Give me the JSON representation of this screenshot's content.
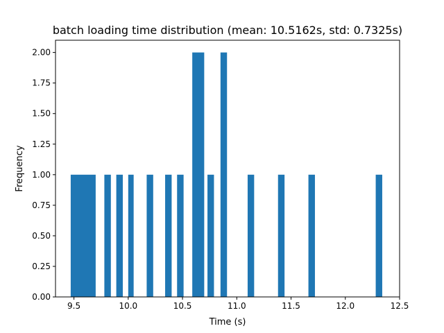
{
  "chart_data": {
    "type": "bar",
    "title": "batch loading time distribution (mean: 10.5162s, std: 0.7325s)",
    "xlabel": "Time (s)",
    "ylabel": "Frequency",
    "xlim": [
      9.33,
      12.5
    ],
    "ylim": [
      0,
      2.1
    ],
    "x_ticks": [
      9.5,
      10.0,
      10.5,
      11.0,
      11.5,
      12.0,
      12.5
    ],
    "x_tick_labels": [
      "9.5",
      "10.0",
      "10.5",
      "11.0",
      "11.5",
      "12.0",
      "12.5"
    ],
    "y_ticks": [
      0,
      0.25,
      0.5,
      0.75,
      1.0,
      1.25,
      1.5,
      1.75,
      2.0
    ],
    "y_tick_labels": [
      "0.00",
      "0.25",
      "0.50",
      "0.75",
      "1.00",
      "1.25",
      "1.50",
      "1.75",
      "2.00"
    ],
    "bar_color": "#1f77b4",
    "grid": false,
    "bins": [
      {
        "x0": 9.47,
        "x1": 9.7,
        "value": 1
      },
      {
        "x0": 9.78,
        "x1": 9.84,
        "value": 1
      },
      {
        "x0": 9.89,
        "x1": 9.95,
        "value": 1
      },
      {
        "x0": 10.0,
        "x1": 10.05,
        "value": 1
      },
      {
        "x0": 10.17,
        "x1": 10.23,
        "value": 1
      },
      {
        "x0": 10.34,
        "x1": 10.4,
        "value": 1
      },
      {
        "x0": 10.45,
        "x1": 10.51,
        "value": 1
      },
      {
        "x0": 10.59,
        "x1": 10.7,
        "value": 2
      },
      {
        "x0": 10.73,
        "x1": 10.79,
        "value": 1
      },
      {
        "x0": 10.85,
        "x1": 10.91,
        "value": 2
      },
      {
        "x0": 11.1,
        "x1": 11.16,
        "value": 1
      },
      {
        "x0": 11.38,
        "x1": 11.44,
        "value": 1
      },
      {
        "x0": 11.66,
        "x1": 11.72,
        "value": 1
      },
      {
        "x0": 12.28,
        "x1": 12.34,
        "value": 1
      }
    ]
  }
}
